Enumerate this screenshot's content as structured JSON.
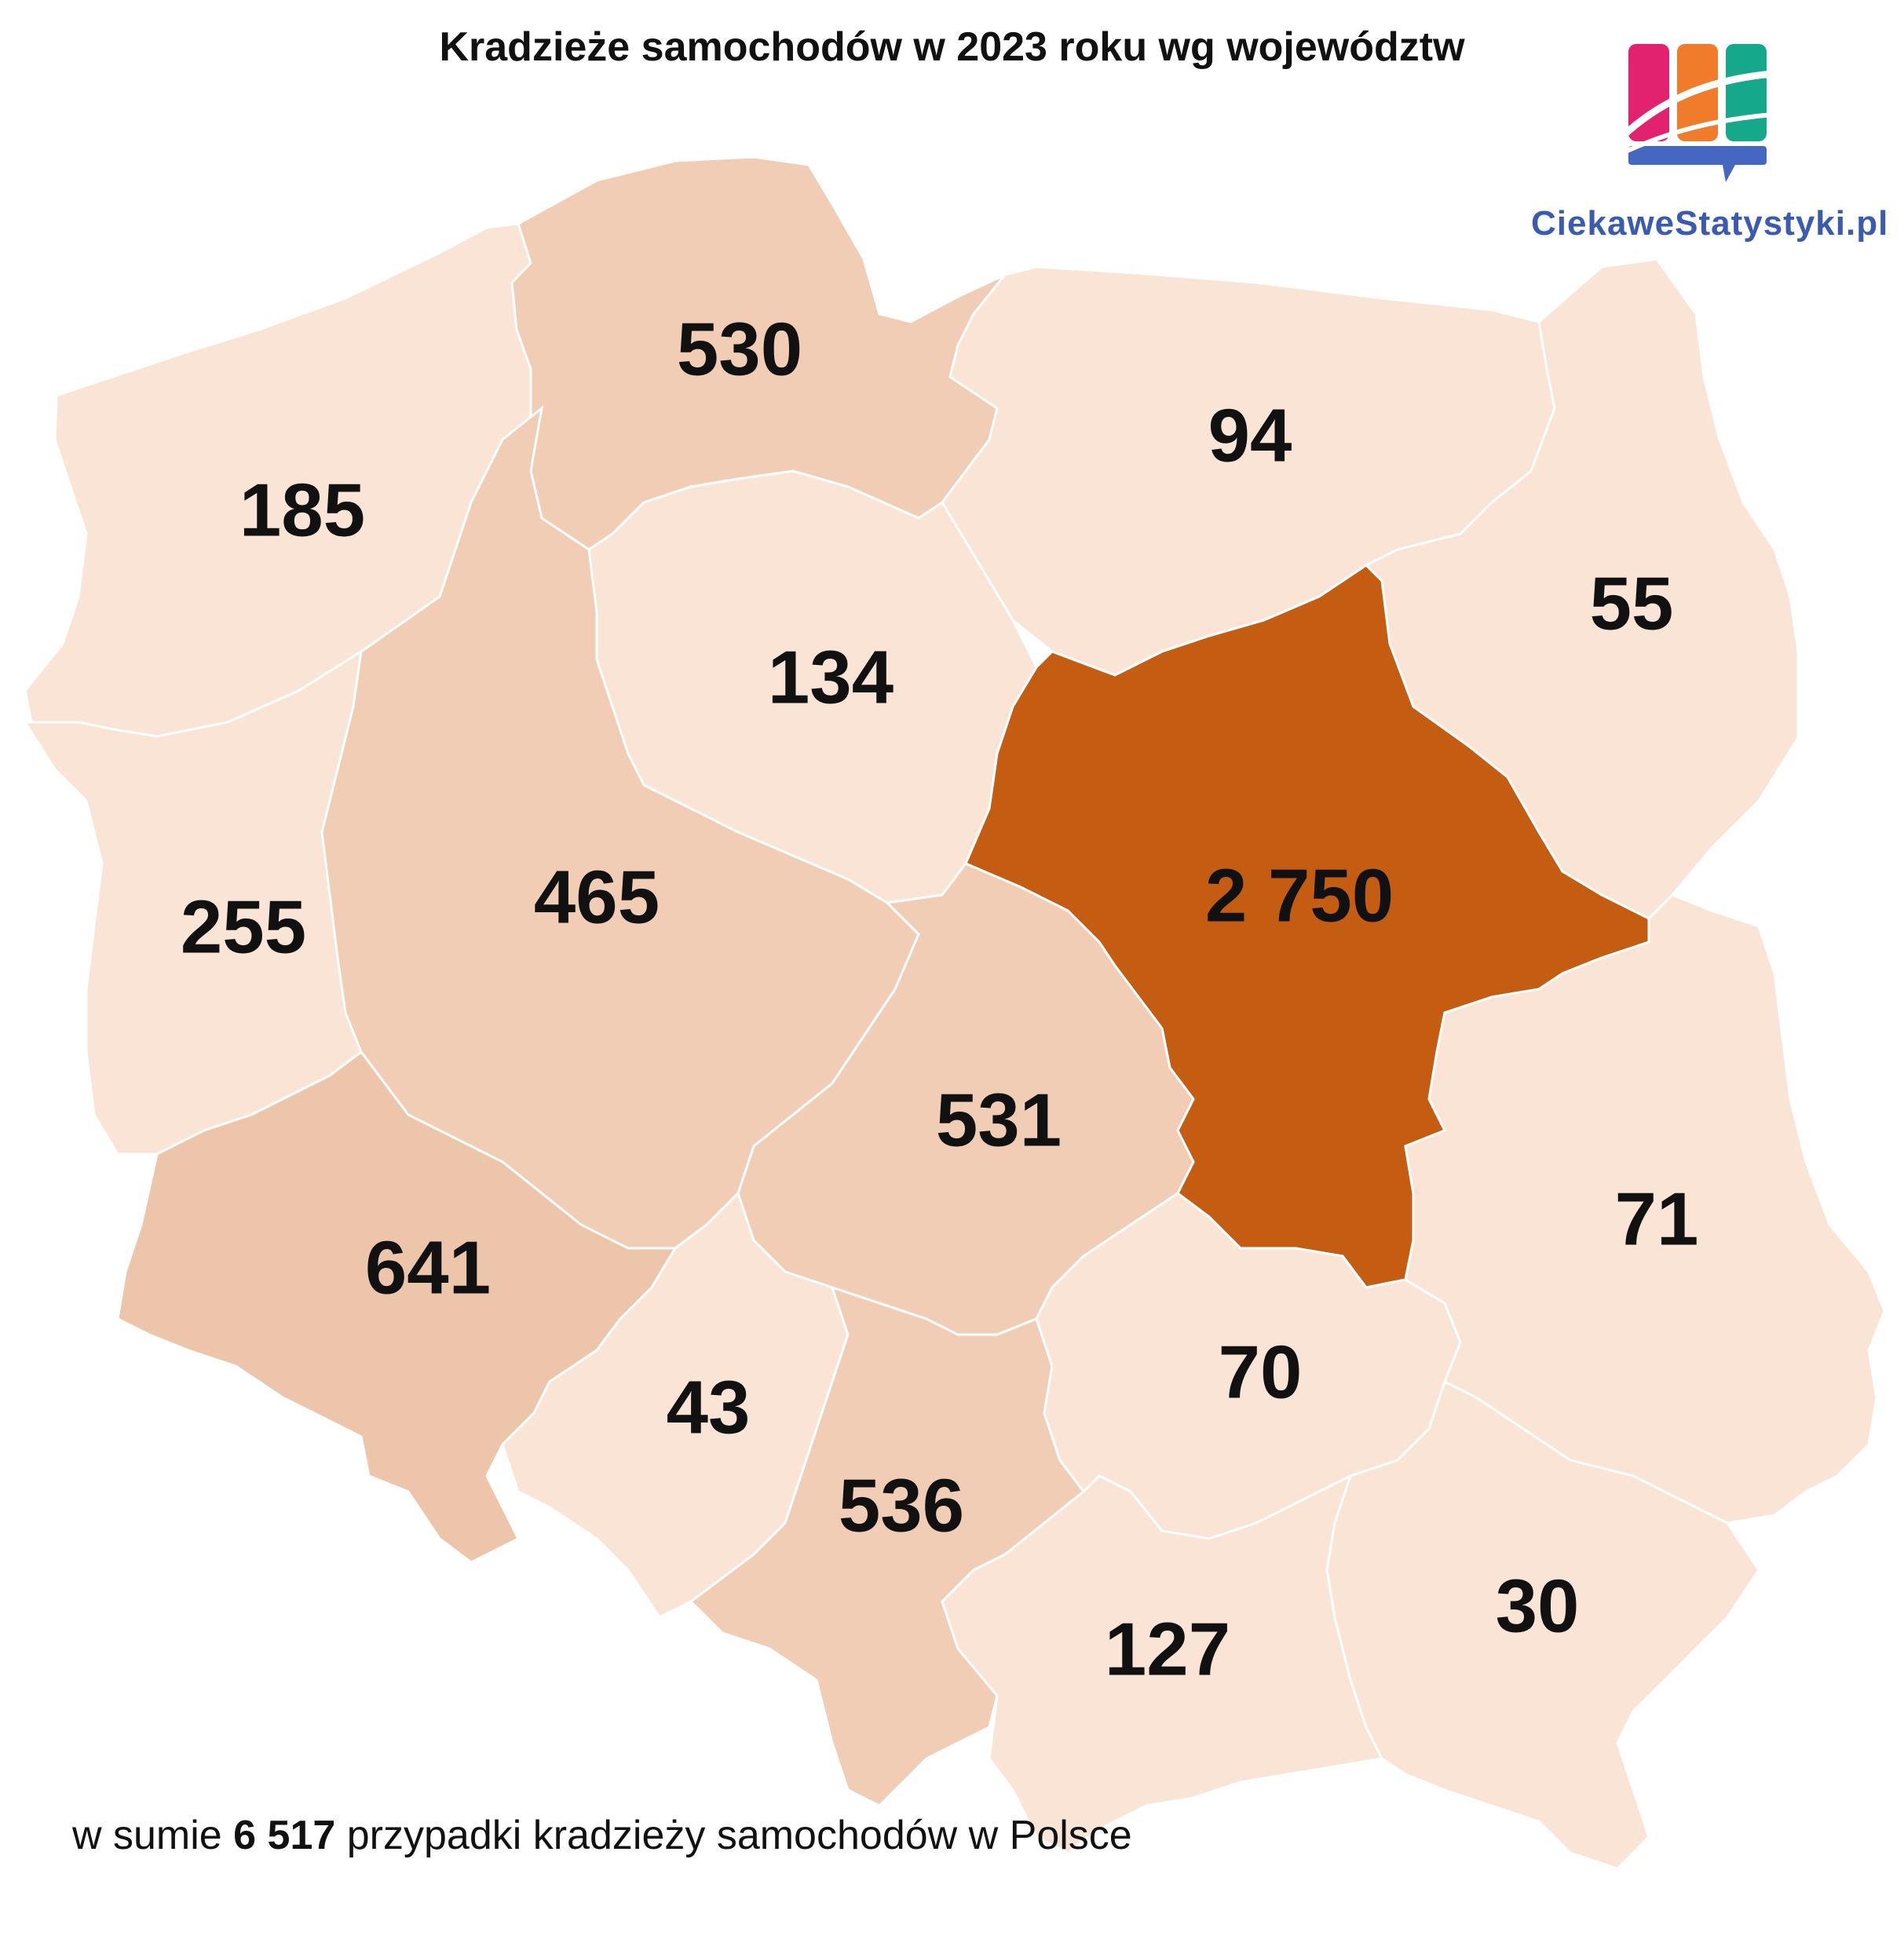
{
  "title": "Kradzieże samochodów w 2023 roku wg województw",
  "logo": {
    "text": "CiekaweStatystyki.pl",
    "icon": "bar-chart-speech-bubble-icon"
  },
  "colors": {
    "lightest": "#f9e4d6",
    "light": "#f8e2d3",
    "medium": "#f0cdb4",
    "darker": "#edc5aa",
    "highlight": "#c45c12",
    "logo_pink": "#e2226f",
    "logo_orange": "#f07b2a",
    "logo_teal": "#16a88b",
    "logo_blue": "#4567c0"
  },
  "regions": [
    {
      "id": "zachodniopomorskie",
      "value": "185"
    },
    {
      "id": "pomorskie",
      "value": "530"
    },
    {
      "id": "warminsko-mazurskie",
      "value": "94"
    },
    {
      "id": "podlaskie",
      "value": "55"
    },
    {
      "id": "kujawsko-pomorskie",
      "value": "134"
    },
    {
      "id": "lubuskie",
      "value": "255"
    },
    {
      "id": "wielkopolskie",
      "value": "465"
    },
    {
      "id": "mazowieckie",
      "value": "2 750"
    },
    {
      "id": "lodzkie",
      "value": "531"
    },
    {
      "id": "dolnoslaskie",
      "value": "641"
    },
    {
      "id": "lubelskie",
      "value": "71"
    },
    {
      "id": "swietokrzyskie",
      "value": "70"
    },
    {
      "id": "opolskie",
      "value": "43"
    },
    {
      "id": "slaskie",
      "value": "536"
    },
    {
      "id": "malopolskie",
      "value": "127"
    },
    {
      "id": "podkarpackie",
      "value": "30"
    }
  ],
  "footer": {
    "prefix": "w sumie ",
    "total": "6 517",
    "suffix": " przypadki kradzieży samochodów w Polsce"
  }
}
